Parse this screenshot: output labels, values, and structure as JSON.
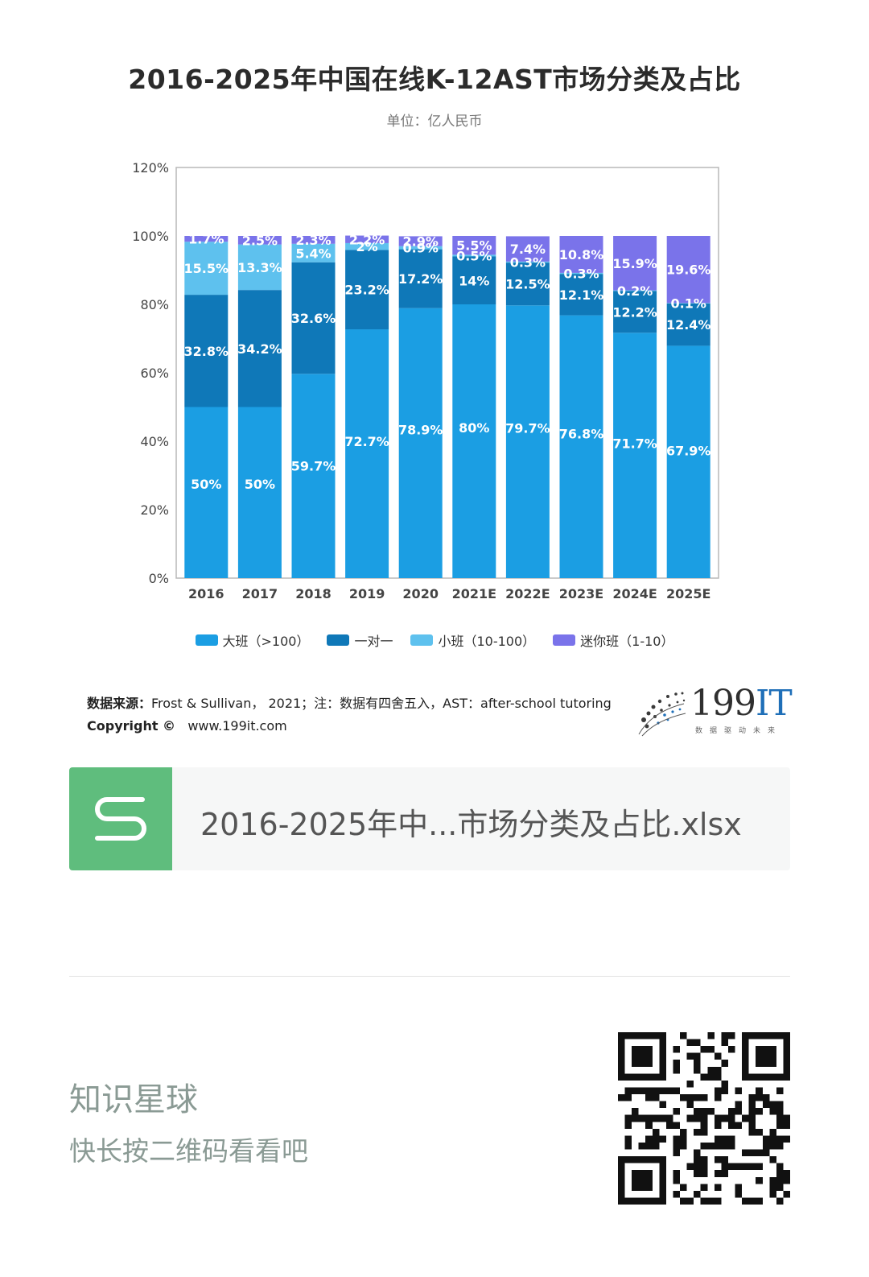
{
  "chart_data": {
    "type": "bar",
    "stacked": true,
    "title": "2016-2025年中国在线K-12AST市场分类及占比",
    "subtitle": "单位：亿人民币",
    "categories": [
      "2016",
      "2017",
      "2018",
      "2019",
      "2020",
      "2021E",
      "2022E",
      "2023E",
      "2024E",
      "2025E"
    ],
    "yticks": [
      "0%",
      "20%",
      "40%",
      "60%",
      "80%",
      "100%",
      "120%"
    ],
    "ylim": [
      0,
      120
    ],
    "series": [
      {
        "name": "大班（>100）",
        "color": "#1b9ee3",
        "values": [
          50,
          50,
          59.7,
          72.7,
          78.9,
          80,
          79.7,
          76.8,
          71.7,
          67.9
        ],
        "labels": [
          "50%",
          "50%",
          "59.7%",
          "72.7%",
          "78.9%",
          "80%",
          "79.7%",
          "76.8%",
          "71.7%",
          "67.9%"
        ]
      },
      {
        "name": "一对一",
        "color": "#0f78b8",
        "values": [
          32.8,
          34.2,
          32.6,
          23.2,
          17.2,
          14,
          12.5,
          12.1,
          12.2,
          12.4
        ],
        "labels": [
          "32.8%",
          "34.2%",
          "32.6%",
          "23.2%",
          "17.2%",
          "14%",
          "12.5%",
          "12.1%",
          "12.2%",
          "12.4%"
        ]
      },
      {
        "name": "小班（10-100）",
        "color": "#5ec1ee",
        "values": [
          15.5,
          13.3,
          5.4,
          2,
          0.9,
          0.5,
          0.3,
          0.3,
          0.2,
          0.1
        ],
        "labels": [
          "15.5%",
          "13.3%",
          "5.4%",
          "2%",
          "0.9%",
          "0.5%",
          "0.3%",
          "0.3%",
          "0.2%",
          "0.1%"
        ]
      },
      {
        "name": "迷你班（1-10）",
        "color": "#7a73ea",
        "values": [
          1.7,
          2.5,
          2.3,
          2.2,
          2.9,
          5.5,
          7.4,
          10.8,
          15.9,
          19.6
        ],
        "labels": [
          "1.7%",
          "2.5%",
          "2.3%",
          "2.2%",
          "2.9%",
          "5.5%",
          "7.4%",
          "10.8%",
          "15.9%",
          "19.6%"
        ]
      }
    ],
    "legend_position": "bottom",
    "grid": false
  },
  "source": {
    "label": "数据来源：",
    "text": "Frost & Sullivan， 2021；注：数据有四舍五入，AST：after-school tutoring",
    "copyright_label": "Copyright ©",
    "copyright_url": "www.199it.com"
  },
  "brand": {
    "name_num": "199",
    "name_it": "IT",
    "tagline": "数据驱动未来"
  },
  "file": {
    "name": "2016-2025年中...市场分类及占比.xlsx",
    "icon": "spreadsheet-s-icon"
  },
  "footer": {
    "title": "知识星球",
    "subtitle": "快长按二维码看看吧"
  }
}
